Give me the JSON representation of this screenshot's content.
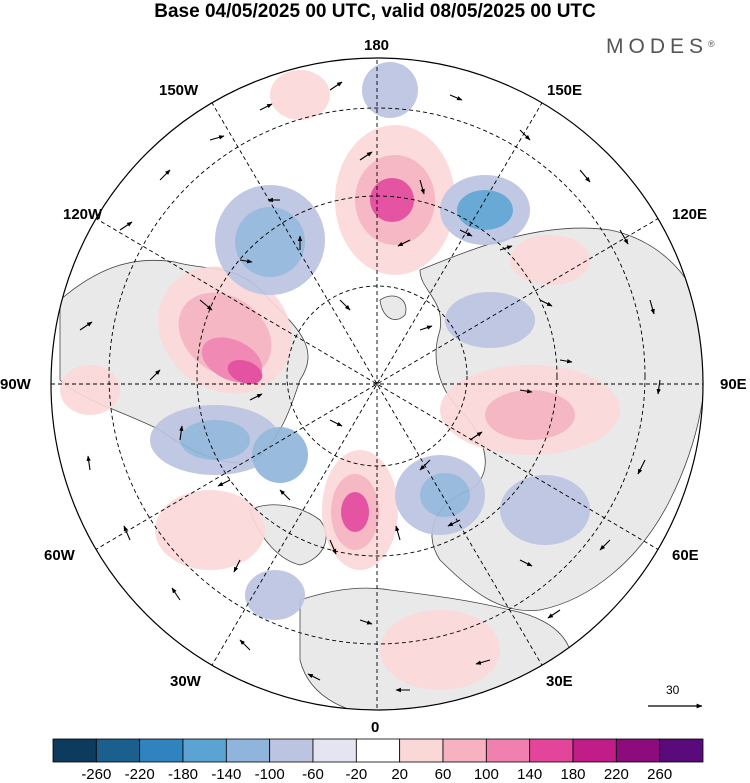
{
  "title": "Base 04/05/2025 00 UTC, valid 08/05/2025 00 UTC",
  "brand": "MODES",
  "brand_mark": "®",
  "map": {
    "projection": "north-polar-stereographic",
    "longitude_labels": {
      "top": "180",
      "bottom": "0",
      "left": "90W",
      "right": "90E",
      "upper_left_1": "150W",
      "upper_left_2": "120W",
      "lower_left_1": "60W",
      "lower_left_2": "30W",
      "upper_right_1": "150E",
      "upper_right_2": "120E",
      "lower_right_1": "60E",
      "lower_right_2": "30E"
    },
    "reference_vector_label": "30",
    "anomaly_centers": [
      {
        "kind": "positive",
        "region": "Bering Sea / Aleutians",
        "level": 180
      },
      {
        "kind": "positive",
        "region": "Canada / Hudson Bay",
        "level": 220
      },
      {
        "kind": "positive",
        "region": "Greenland Sea / Svalbard",
        "level": 200
      },
      {
        "kind": "positive",
        "region": "Siberia / Kara Sea",
        "level": 100
      },
      {
        "kind": "positive",
        "region": "Central North Atlantic",
        "level": 100
      },
      {
        "kind": "negative",
        "region": "Gulf of Alaska",
        "level": -140
      },
      {
        "kind": "negative",
        "region": "Kamchatka / Okhotsk",
        "level": -140
      },
      {
        "kind": "negative",
        "region": "Labrador Sea",
        "level": -140
      },
      {
        "kind": "negative",
        "region": "Scandinavia / Barents",
        "level": -140
      },
      {
        "kind": "negative",
        "region": "Western Siberia",
        "level": -100
      },
      {
        "kind": "negative",
        "region": "East Atlantic / Azores",
        "level": -100
      }
    ]
  },
  "colorbar": {
    "tick_labels": [
      "-260",
      "-220",
      "-180",
      "-140",
      "-100",
      "-60",
      "-20",
      "20",
      "60",
      "100",
      "140",
      "180",
      "220",
      "260"
    ],
    "colors": [
      "#0d3b5e",
      "#1b5f8f",
      "#2f84c0",
      "#5ba3d2",
      "#8fb5dc",
      "#bcc4e2",
      "#e5e5f1",
      "#ffffff",
      "#fbd8d8",
      "#f6b2c0",
      "#f080ae",
      "#e2459a",
      "#c01d88",
      "#8e0b7d",
      "#5a0a7a"
    ]
  }
}
